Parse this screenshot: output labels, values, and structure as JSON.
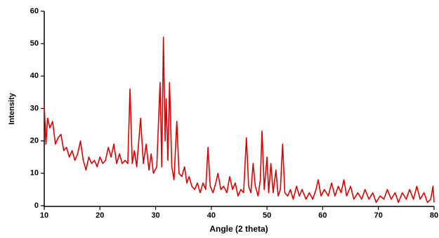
{
  "chart_data": {
    "type": "line",
    "x_label": "Angle (2 theta)",
    "y_label": "Intensity",
    "xlim": [
      10,
      80
    ],
    "ylim": [
      0,
      60
    ],
    "xticks": [
      10,
      20,
      30,
      40,
      50,
      60,
      70,
      80
    ],
    "yticks": [
      0,
      10,
      20,
      30,
      40,
      50,
      60
    ],
    "grid": false,
    "x": [
      10,
      10.3,
      10.6,
      11,
      11.5,
      12,
      12.5,
      13,
      13.5,
      14,
      14.5,
      15,
      15.5,
      16,
      16.5,
      17,
      17.5,
      18,
      18.5,
      19,
      19.5,
      20,
      20.5,
      21,
      21.5,
      22,
      22.5,
      23,
      23.5,
      24,
      24.5,
      25,
      25.4,
      25.8,
      26.2,
      26.6,
      27.3,
      27.8,
      28.3,
      28.8,
      29.2,
      29.6,
      30.2,
      30.8,
      31.1,
      31.4,
      31.7,
      31.9,
      32.2,
      32.5,
      32.9,
      33.3,
      33.8,
      34.2,
      34.7,
      35.2,
      35.6,
      36,
      36.5,
      37,
      37.5,
      38,
      38.5,
      39,
      39.4,
      39.8,
      40.3,
      40.8,
      41.2,
      41.7,
      42.2,
      42.8,
      43.3,
      43.8,
      44.3,
      44.8,
      45.3,
      45.8,
      46.3,
      46.7,
      47.1,
      47.5,
      47.9,
      48.4,
      48.8,
      49.1,
      49.5,
      50,
      50.3,
      50.7,
      51.1,
      51.6,
      52,
      52.4,
      52.8,
      53.2,
      53.7,
      54.2,
      54.7,
      55.3,
      55.8,
      56.3,
      57,
      57.6,
      58.2,
      58.8,
      59.2,
      59.7,
      60.3,
      61,
      61.6,
      62.2,
      62.8,
      63.3,
      63.8,
      64.3,
      65,
      65.6,
      66.3,
      67,
      67.6,
      68.3,
      69,
      69.6,
      70.3,
      71,
      71.6,
      72.3,
      73,
      73.6,
      74.3,
      75,
      75.6,
      76.3,
      76.9,
      77.5,
      78.2,
      78.8,
      79.4,
      79.8,
      80
    ],
    "series": [
      {
        "color": "#e00000",
        "values": [
          31,
          19,
          27,
          24,
          26,
          19,
          21,
          22,
          17,
          18,
          15,
          17,
          14,
          16,
          20,
          14,
          11,
          15,
          13,
          14,
          12,
          15,
          13,
          14,
          18,
          15,
          19,
          13,
          16,
          13,
          14,
          13,
          36,
          13,
          17,
          12,
          27,
          13,
          19,
          11,
          16,
          10,
          12,
          38,
          12,
          52,
          20,
          33,
          14,
          38,
          12,
          8,
          26,
          10,
          9,
          12,
          7,
          9,
          6,
          5,
          7,
          4,
          7,
          5,
          18,
          6,
          4,
          7,
          10,
          5,
          6,
          4,
          9,
          5,
          7,
          3,
          5,
          4,
          21,
          6,
          4,
          13,
          6,
          3,
          8,
          23,
          5,
          15,
          4,
          13,
          4,
          11,
          3,
          5,
          19,
          4,
          3,
          5,
          2,
          6,
          3,
          5,
          2,
          4,
          2,
          5,
          8,
          3,
          5,
          3,
          7,
          3,
          6,
          4,
          8,
          3,
          6,
          2,
          4,
          2,
          5,
          2,
          4,
          1,
          3,
          2,
          5,
          2,
          4,
          1,
          4,
          2,
          5,
          2,
          6,
          2,
          4,
          1,
          2,
          6,
          1
        ]
      }
    ]
  }
}
